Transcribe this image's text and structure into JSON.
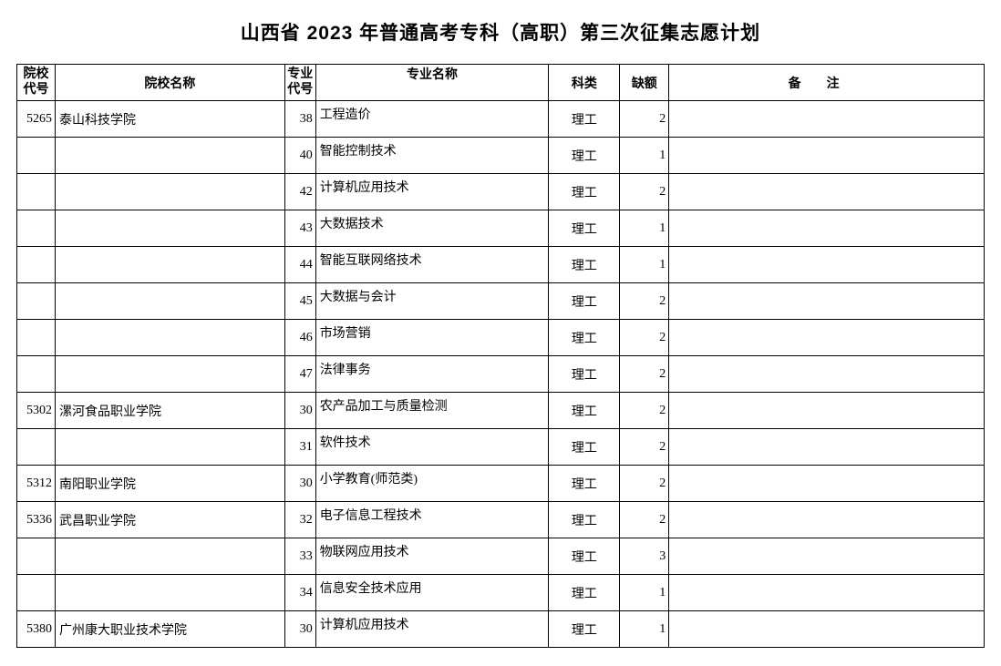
{
  "document": {
    "title": "山西省 2023 年普通高考专科（高职）第三次征集志愿计划",
    "background_color": "#ffffff",
    "text_color": "#000000",
    "border_color": "#000000",
    "title_fontsize": 21,
    "body_fontsize": 14
  },
  "table": {
    "headers": {
      "school_code": "院校代号",
      "school_name": "院校名称",
      "major_code": "专业代号",
      "major_name": "专业名称",
      "category": "科类",
      "vacancy": "缺额",
      "remark": "备注"
    },
    "column_widths": {
      "school_code": 42,
      "school_name": 252,
      "major_code": 34,
      "major_name": 256,
      "category": 78,
      "vacancy": 54,
      "remark": 346
    },
    "rows": [
      {
        "school_code": "5265",
        "school_name": "泰山科技学院",
        "major_code": "38",
        "major_name": "工程造价",
        "category": "理工",
        "vacancy": "2",
        "remark": ""
      },
      {
        "school_code": "",
        "school_name": "",
        "major_code": "40",
        "major_name": "智能控制技术",
        "category": "理工",
        "vacancy": "1",
        "remark": ""
      },
      {
        "school_code": "",
        "school_name": "",
        "major_code": "42",
        "major_name": "计算机应用技术",
        "category": "理工",
        "vacancy": "2",
        "remark": ""
      },
      {
        "school_code": "",
        "school_name": "",
        "major_code": "43",
        "major_name": "大数据技术",
        "category": "理工",
        "vacancy": "1",
        "remark": ""
      },
      {
        "school_code": "",
        "school_name": "",
        "major_code": "44",
        "major_name": "智能互联网络技术",
        "category": "理工",
        "vacancy": "1",
        "remark": ""
      },
      {
        "school_code": "",
        "school_name": "",
        "major_code": "45",
        "major_name": "大数据与会计",
        "category": "理工",
        "vacancy": "2",
        "remark": ""
      },
      {
        "school_code": "",
        "school_name": "",
        "major_code": "46",
        "major_name": "市场营销",
        "category": "理工",
        "vacancy": "2",
        "remark": ""
      },
      {
        "school_code": "",
        "school_name": "",
        "major_code": "47",
        "major_name": "法律事务",
        "category": "理工",
        "vacancy": "2",
        "remark": ""
      },
      {
        "school_code": "5302",
        "school_name": "漯河食品职业学院",
        "major_code": "30",
        "major_name": "农产品加工与质量检测",
        "category": "理工",
        "vacancy": "2",
        "remark": ""
      },
      {
        "school_code": "",
        "school_name": "",
        "major_code": "31",
        "major_name": "软件技术",
        "category": "理工",
        "vacancy": "2",
        "remark": ""
      },
      {
        "school_code": "5312",
        "school_name": "南阳职业学院",
        "major_code": "30",
        "major_name": "小学教育(师范类)",
        "category": "理工",
        "vacancy": "2",
        "remark": ""
      },
      {
        "school_code": "5336",
        "school_name": "武昌职业学院",
        "major_code": "32",
        "major_name": "电子信息工程技术",
        "category": "理工",
        "vacancy": "2",
        "remark": ""
      },
      {
        "school_code": "",
        "school_name": "",
        "major_code": "33",
        "major_name": "物联网应用技术",
        "category": "理工",
        "vacancy": "3",
        "remark": ""
      },
      {
        "school_code": "",
        "school_name": "",
        "major_code": "34",
        "major_name": "信息安全技术应用",
        "category": "理工",
        "vacancy": "1",
        "remark": ""
      },
      {
        "school_code": "5380",
        "school_name": "广州康大职业技术学院",
        "major_code": "30",
        "major_name": "计算机应用技术",
        "category": "理工",
        "vacancy": "1",
        "remark": ""
      }
    ]
  }
}
